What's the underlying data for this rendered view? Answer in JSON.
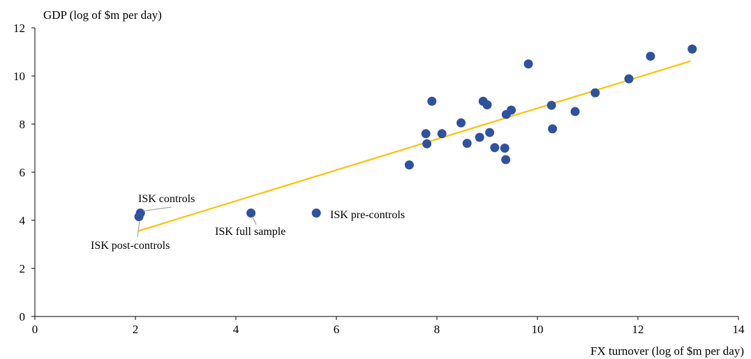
{
  "chart_data": {
    "type": "scatter",
    "title": "",
    "xlabel": "FX turnover (log of $m per day)",
    "ylabel": "GDP (log of $m per day)",
    "xlim": [
      0,
      14
    ],
    "ylim": [
      0,
      12
    ],
    "xticks": [
      "0",
      "2",
      "4",
      "6",
      "8",
      "10",
      "12",
      "14"
    ],
    "yticks": [
      "0",
      "2",
      "4",
      "6",
      "8",
      "10",
      "12"
    ],
    "grid": false,
    "colors": {
      "points": "#2f52a0",
      "trend": "#ffc000",
      "leader": "#a6a6a6"
    },
    "points": [
      {
        "x": 2.1,
        "y": 4.3
      },
      {
        "x": 2.07,
        "y": 4.15
      },
      {
        "x": 4.3,
        "y": 4.3
      },
      {
        "x": 5.6,
        "y": 4.3
      },
      {
        "x": 7.45,
        "y": 6.3
      },
      {
        "x": 7.78,
        "y": 7.6
      },
      {
        "x": 7.8,
        "y": 7.18
      },
      {
        "x": 7.9,
        "y": 8.95
      },
      {
        "x": 8.1,
        "y": 7.6
      },
      {
        "x": 8.48,
        "y": 8.05
      },
      {
        "x": 8.6,
        "y": 7.2
      },
      {
        "x": 8.85,
        "y": 7.45
      },
      {
        "x": 8.92,
        "y": 8.95
      },
      {
        "x": 9.0,
        "y": 8.8
      },
      {
        "x": 9.05,
        "y": 7.65
      },
      {
        "x": 9.15,
        "y": 7.02
      },
      {
        "x": 9.35,
        "y": 7.0
      },
      {
        "x": 9.37,
        "y": 6.52
      },
      {
        "x": 9.38,
        "y": 8.4
      },
      {
        "x": 9.48,
        "y": 8.58
      },
      {
        "x": 9.82,
        "y": 10.5
      },
      {
        "x": 10.28,
        "y": 8.78
      },
      {
        "x": 10.3,
        "y": 7.8
      },
      {
        "x": 10.75,
        "y": 8.52
      },
      {
        "x": 11.15,
        "y": 9.3
      },
      {
        "x": 11.82,
        "y": 9.88
      },
      {
        "x": 12.25,
        "y": 10.82
      },
      {
        "x": 13.08,
        "y": 11.12
      }
    ],
    "trendline": {
      "x": [
        2.05,
        13.05
      ],
      "y": [
        3.55,
        10.62
      ]
    },
    "annotations": [
      {
        "text": "ISK controls",
        "point": [
          2.1,
          4.3
        ]
      },
      {
        "text": "ISK post-controls",
        "point": [
          2.07,
          4.15
        ]
      },
      {
        "text": "ISK full sample",
        "point": [
          4.3,
          4.3
        ]
      },
      {
        "text": "ISK pre-controls",
        "point": [
          5.6,
          4.3
        ]
      }
    ]
  }
}
